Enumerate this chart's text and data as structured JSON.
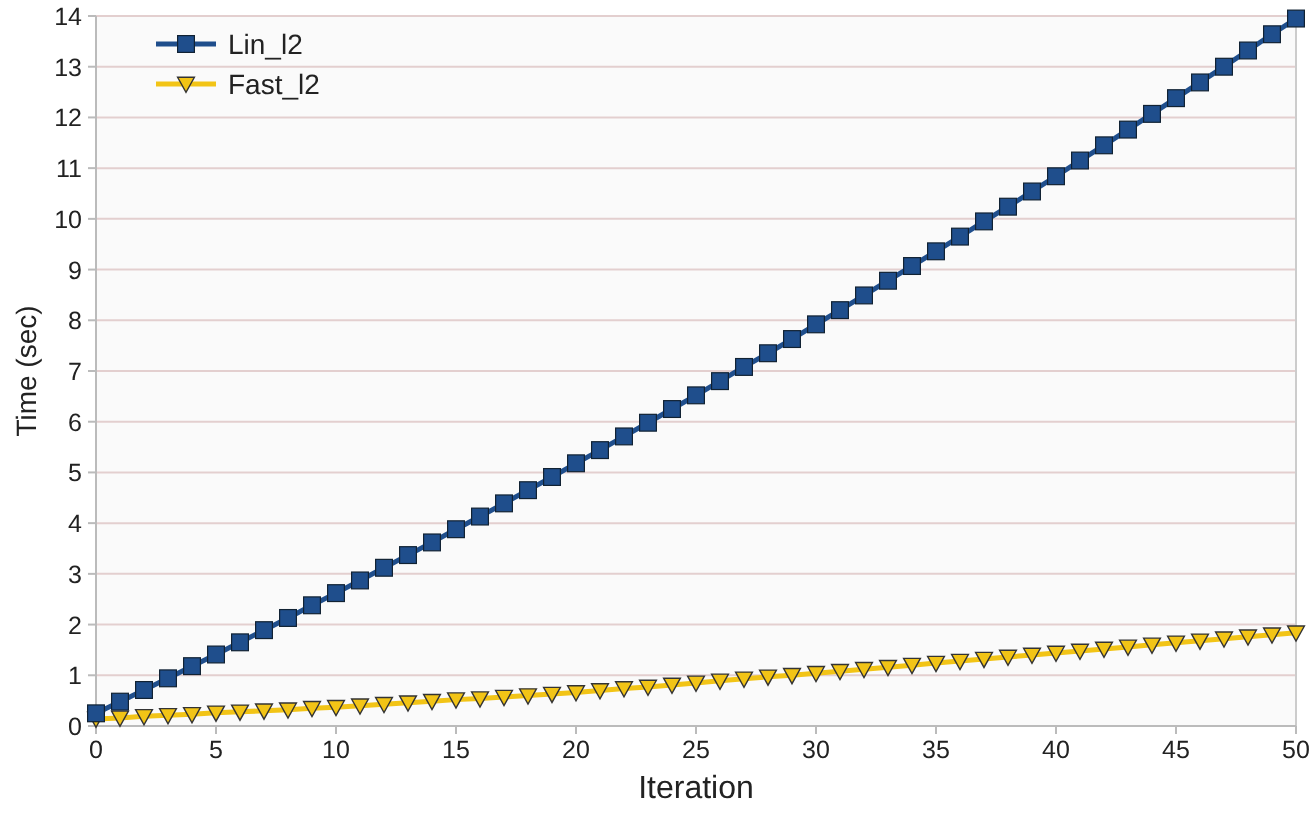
{
  "chart_data": {
    "type": "line",
    "xlabel": "Iteration",
    "ylabel": "Time (sec)",
    "x": [
      0,
      1,
      2,
      3,
      4,
      5,
      6,
      7,
      8,
      9,
      10,
      11,
      12,
      13,
      14,
      15,
      16,
      17,
      18,
      19,
      20,
      21,
      22,
      23,
      24,
      25,
      26,
      27,
      28,
      29,
      30,
      31,
      32,
      33,
      34,
      35,
      36,
      37,
      38,
      39,
      40,
      41,
      42,
      43,
      44,
      45,
      46,
      47,
      48,
      49,
      50
    ],
    "series": [
      {
        "name": "Lin_l2",
        "color": "#1f4e8c",
        "marker": "square",
        "values": [
          0.25,
          0.48,
          0.71,
          0.94,
          1.18,
          1.41,
          1.65,
          1.89,
          2.13,
          2.38,
          2.62,
          2.87,
          3.12,
          3.37,
          3.62,
          3.88,
          4.13,
          4.39,
          4.65,
          4.91,
          5.18,
          5.44,
          5.71,
          5.98,
          6.25,
          6.52,
          6.8,
          7.08,
          7.35,
          7.63,
          7.92,
          8.2,
          8.49,
          8.78,
          9.07,
          9.36,
          9.65,
          9.95,
          10.24,
          10.54,
          10.84,
          11.15,
          11.45,
          11.76,
          12.07,
          12.38,
          12.69,
          13.0,
          13.32,
          13.64,
          13.95
        ]
      },
      {
        "name": "Fast_l2",
        "color": "#f2c416",
        "marker": "triangle",
        "values": [
          0.14,
          0.16,
          0.19,
          0.21,
          0.23,
          0.26,
          0.28,
          0.3,
          0.32,
          0.35,
          0.37,
          0.4,
          0.43,
          0.46,
          0.49,
          0.52,
          0.54,
          0.57,
          0.6,
          0.63,
          0.66,
          0.7,
          0.74,
          0.77,
          0.81,
          0.85,
          0.89,
          0.93,
          0.97,
          1.0,
          1.04,
          1.08,
          1.12,
          1.16,
          1.2,
          1.24,
          1.28,
          1.32,
          1.36,
          1.4,
          1.44,
          1.48,
          1.52,
          1.56,
          1.6,
          1.64,
          1.68,
          1.72,
          1.76,
          1.8,
          1.84
        ]
      }
    ],
    "xlim": [
      0,
      50
    ],
    "xticks": [
      0,
      5,
      10,
      15,
      20,
      25,
      30,
      35,
      40,
      45,
      50
    ],
    "ylim": [
      0,
      14
    ],
    "yticks": [
      0,
      1,
      2,
      3,
      4,
      5,
      6,
      7,
      8,
      9,
      10,
      11,
      12,
      13,
      14
    ],
    "grid": "y",
    "legend": "top left",
    "line_style": "solid"
  }
}
